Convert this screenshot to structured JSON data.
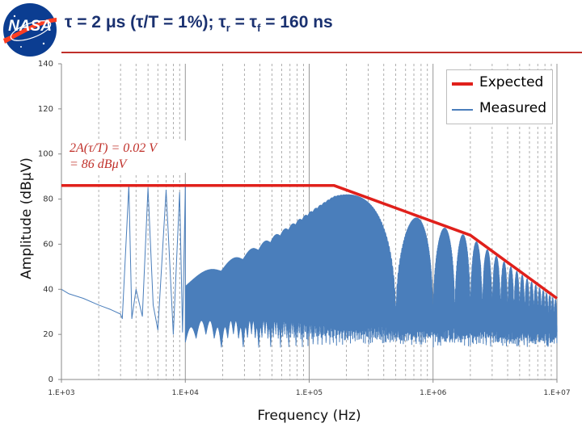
{
  "slide": {
    "title_main": "τ = 2 μs (τ/T = 1%); τ",
    "title_sub1": "r",
    "title_mid": " = τ",
    "title_sub2": "f",
    "title_end": "  = 160 ns"
  },
  "logo": {
    "text": "NASA",
    "colors": {
      "circle": "#0b3d91",
      "stripe": "#fc3d21"
    }
  },
  "chart_data": {
    "type": "line",
    "title": "",
    "xlabel": "Frequency (Hz)",
    "ylabel": "Amplitude (dBμV)",
    "xscale": "log",
    "xlim": [
      1000,
      10000000
    ],
    "ylim": [
      0,
      140
    ],
    "x_ticks": [
      1000,
      10000,
      100000,
      1000000,
      10000000
    ],
    "x_tick_labels": [
      "1.E+03",
      "1.E+04",
      "1.E+05",
      "1.E+06",
      "1.E+07"
    ],
    "y_ticks": [
      0,
      20,
      40,
      60,
      80,
      100,
      120,
      140
    ],
    "y_tick_labels": [
      "0",
      "20",
      "40",
      "60",
      "80",
      "100",
      "120",
      "140"
    ],
    "grid": {
      "vertical_minor": true,
      "horizontal": false
    },
    "legend_position": "top-right",
    "series": [
      {
        "name": "Expected",
        "color": "#e0201b",
        "x": [
          1000,
          159000,
          2000000,
          10000000
        ],
        "y": [
          86,
          86,
          64,
          36
        ]
      },
      {
        "name": "Measured",
        "color": "#4a7ebb",
        "note": "spectral lines; envelope values listed",
        "x": [
          1000,
          1150,
          1500,
          2000,
          2500,
          3000,
          3100,
          3500,
          3700,
          4000,
          4500,
          5000,
          5500,
          6000,
          7000,
          8000,
          9000,
          9500,
          10000
        ],
        "y": [
          40,
          38,
          36,
          33,
          31,
          29,
          27,
          86,
          27,
          40,
          28,
          85,
          33,
          22,
          84,
          20,
          83,
          21,
          86
        ]
      }
    ],
    "annotation": {
      "line1": "2A(τ/T) = 0.02 V",
      "line2": "= 86 dBμV"
    }
  }
}
